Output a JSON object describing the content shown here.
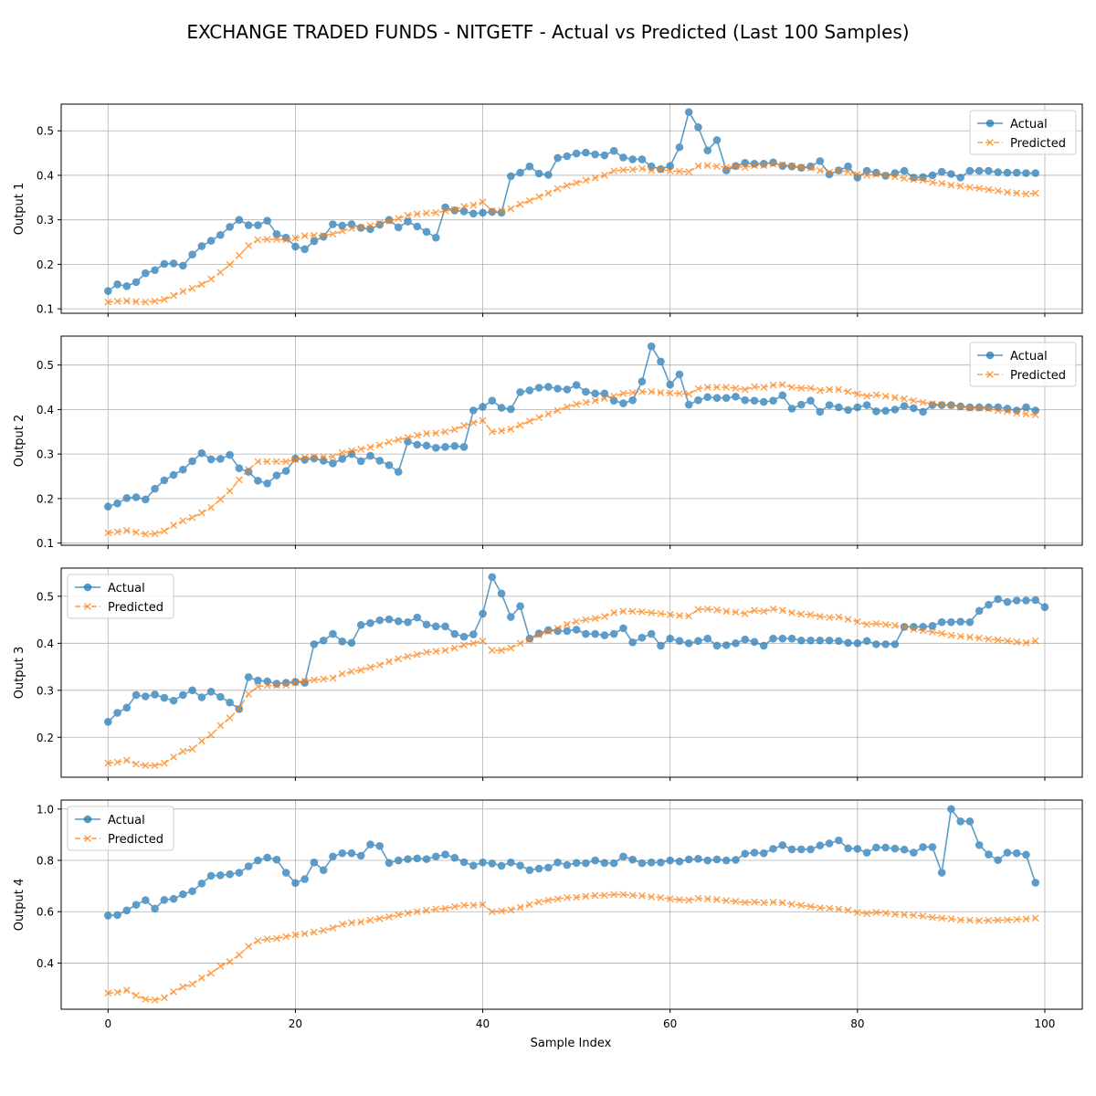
{
  "figure": {
    "title": "EXCHANGE TRADED FUNDS - NITGETF - Actual vs Predicted (Last 100 Samples)",
    "xlabel": "Sample Index"
  },
  "colors": {
    "actual": "#1f77b4",
    "predicted": "#ff7f0e",
    "grid": "#b0b0b0"
  },
  "chart_data": [
    {
      "type": "line",
      "ylabel": "Output 1",
      "xlim": [
        -5,
        104
      ],
      "ylim": [
        0.09,
        0.56
      ],
      "xticks": [
        0,
        20,
        40,
        60,
        80,
        100
      ],
      "yticks": [
        0.1,
        0.2,
        0.3,
        0.4,
        0.5
      ],
      "grid": true,
      "legend_position": "upper right",
      "series": [
        {
          "name": "Actual",
          "marker": "circle",
          "linestyle": "solid",
          "values": [
            0.14,
            0.155,
            0.151,
            0.16,
            0.18,
            0.187,
            0.201,
            0.202,
            0.197,
            0.222,
            0.241,
            0.253,
            0.266,
            0.284,
            0.3,
            0.288,
            0.288,
            0.298,
            0.268,
            0.26,
            0.24,
            0.234,
            0.252,
            0.262,
            0.29,
            0.287,
            0.29,
            0.282,
            0.279,
            0.289,
            0.3,
            0.283,
            0.296,
            0.285,
            0.273,
            0.26,
            0.328,
            0.321,
            0.319,
            0.314,
            0.316,
            0.318,
            0.316,
            0.398,
            0.406,
            0.42,
            0.404,
            0.401,
            0.439,
            0.443,
            0.449,
            0.451,
            0.447,
            0.445,
            0.455,
            0.44,
            0.436,
            0.436,
            0.42,
            0.414,
            0.421,
            0.463,
            0.542,
            0.508,
            0.456,
            0.479,
            0.411,
            0.421,
            0.428,
            0.426,
            0.426,
            0.429,
            0.421,
            0.42,
            0.417,
            0.42,
            0.432,
            0.402,
            0.411,
            0.42,
            0.395,
            0.41,
            0.406,
            0.399,
            0.405,
            0.41,
            0.395,
            0.396,
            0.4,
            0.408,
            0.403,
            0.395,
            0.41,
            0.41,
            0.41,
            0.407,
            0.406,
            0.406,
            0.405,
            0.405
          ]
        },
        {
          "name": "Predicted",
          "marker": "x",
          "linestyle": "dashed",
          "values": [
            0.115,
            0.117,
            0.118,
            0.116,
            0.115,
            0.117,
            0.121,
            0.13,
            0.139,
            0.146,
            0.155,
            0.167,
            0.182,
            0.199,
            0.22,
            0.242,
            0.255,
            0.256,
            0.256,
            0.255,
            0.259,
            0.264,
            0.265,
            0.265,
            0.268,
            0.275,
            0.281,
            0.283,
            0.287,
            0.292,
            0.297,
            0.303,
            0.31,
            0.313,
            0.315,
            0.316,
            0.32,
            0.323,
            0.33,
            0.333,
            0.34,
            0.32,
            0.32,
            0.325,
            0.335,
            0.343,
            0.352,
            0.36,
            0.37,
            0.377,
            0.383,
            0.389,
            0.394,
            0.4,
            0.41,
            0.412,
            0.413,
            0.415,
            0.411,
            0.413,
            0.41,
            0.409,
            0.408,
            0.421,
            0.422,
            0.42,
            0.418,
            0.42,
            0.418,
            0.422,
            0.422,
            0.425,
            0.424,
            0.421,
            0.418,
            0.416,
            0.411,
            0.407,
            0.411,
            0.408,
            0.402,
            0.4,
            0.402,
            0.4,
            0.397,
            0.393,
            0.391,
            0.389,
            0.384,
            0.382,
            0.378,
            0.376,
            0.373,
            0.371,
            0.368,
            0.365,
            0.362,
            0.36,
            0.358,
            0.36
          ]
        }
      ]
    },
    {
      "type": "line",
      "ylabel": "Output 2",
      "xlim": [
        -5,
        104
      ],
      "ylim": [
        0.095,
        0.565
      ],
      "xticks": [
        0,
        20,
        40,
        60,
        80,
        100
      ],
      "yticks": [
        0.1,
        0.2,
        0.3,
        0.4,
        0.5
      ],
      "grid": true,
      "legend_position": "upper right",
      "series": [
        {
          "name": "Actual",
          "marker": "circle",
          "linestyle": "solid",
          "values": [
            0.182,
            0.189,
            0.201,
            0.203,
            0.198,
            0.222,
            0.241,
            0.253,
            0.265,
            0.284,
            0.302,
            0.288,
            0.289,
            0.298,
            0.268,
            0.26,
            0.24,
            0.234,
            0.252,
            0.262,
            0.29,
            0.287,
            0.29,
            0.285,
            0.279,
            0.289,
            0.3,
            0.284,
            0.296,
            0.285,
            0.275,
            0.26,
            0.328,
            0.321,
            0.319,
            0.314,
            0.316,
            0.318,
            0.316,
            0.398,
            0.406,
            0.42,
            0.404,
            0.401,
            0.439,
            0.443,
            0.449,
            0.451,
            0.447,
            0.445,
            0.455,
            0.44,
            0.436,
            0.436,
            0.42,
            0.414,
            0.421,
            0.463,
            0.542,
            0.508,
            0.456,
            0.479,
            0.411,
            0.421,
            0.428,
            0.426,
            0.426,
            0.429,
            0.421,
            0.42,
            0.417,
            0.42,
            0.432,
            0.402,
            0.411,
            0.42,
            0.395,
            0.41,
            0.405,
            0.399,
            0.405,
            0.41,
            0.396,
            0.397,
            0.4,
            0.408,
            0.403,
            0.395,
            0.41,
            0.41,
            0.41,
            0.407,
            0.405,
            0.405,
            0.405,
            0.405,
            0.402,
            0.398,
            0.405,
            0.398
          ]
        },
        {
          "name": "Predicted",
          "marker": "x",
          "linestyle": "dashed",
          "values": [
            0.123,
            0.125,
            0.128,
            0.124,
            0.12,
            0.121,
            0.127,
            0.14,
            0.15,
            0.157,
            0.168,
            0.18,
            0.198,
            0.217,
            0.242,
            0.265,
            0.283,
            0.283,
            0.283,
            0.283,
            0.287,
            0.292,
            0.294,
            0.294,
            0.294,
            0.303,
            0.307,
            0.311,
            0.315,
            0.32,
            0.327,
            0.332,
            0.337,
            0.342,
            0.346,
            0.347,
            0.35,
            0.355,
            0.364,
            0.37,
            0.375,
            0.35,
            0.352,
            0.356,
            0.365,
            0.374,
            0.382,
            0.39,
            0.398,
            0.406,
            0.412,
            0.416,
            0.42,
            0.425,
            0.43,
            0.436,
            0.438,
            0.44,
            0.44,
            0.438,
            0.437,
            0.436,
            0.435,
            0.447,
            0.45,
            0.45,
            0.45,
            0.448,
            0.445,
            0.451,
            0.45,
            0.455,
            0.456,
            0.45,
            0.448,
            0.448,
            0.443,
            0.445,
            0.445,
            0.44,
            0.435,
            0.43,
            0.433,
            0.43,
            0.427,
            0.424,
            0.42,
            0.416,
            0.413,
            0.411,
            0.409,
            0.405,
            0.403,
            0.403,
            0.402,
            0.398,
            0.396,
            0.392,
            0.39,
            0.388
          ]
        }
      ]
    },
    {
      "type": "line",
      "ylabel": "Output 3",
      "xlim": [
        -5,
        104
      ],
      "ylim": [
        0.115,
        0.56
      ],
      "xticks": [
        0,
        20,
        40,
        60,
        80,
        100
      ],
      "yticks": [
        0.2,
        0.3,
        0.4,
        0.5
      ],
      "grid": true,
      "legend_position": "upper left",
      "series": [
        {
          "name": "Actual",
          "marker": "circle",
          "linestyle": "solid",
          "values": [
            0.233,
            0.252,
            0.263,
            0.29,
            0.287,
            0.291,
            0.284,
            0.278,
            0.29,
            0.3,
            0.285,
            0.297,
            0.286,
            0.274,
            0.26,
            0.328,
            0.321,
            0.319,
            0.314,
            0.316,
            0.318,
            0.316,
            0.398,
            0.406,
            0.42,
            0.404,
            0.401,
            0.439,
            0.443,
            0.449,
            0.451,
            0.447,
            0.445,
            0.455,
            0.44,
            0.436,
            0.436,
            0.42,
            0.414,
            0.419,
            0.463,
            0.541,
            0.506,
            0.456,
            0.479,
            0.41,
            0.421,
            0.428,
            0.426,
            0.426,
            0.429,
            0.42,
            0.42,
            0.417,
            0.42,
            0.432,
            0.402,
            0.412,
            0.42,
            0.395,
            0.41,
            0.405,
            0.4,
            0.405,
            0.41,
            0.395,
            0.396,
            0.4,
            0.408,
            0.403,
            0.395,
            0.41,
            0.41,
            0.41,
            0.406,
            0.406,
            0.406,
            0.406,
            0.405,
            0.401,
            0.4,
            0.405,
            0.398,
            0.398,
            0.398,
            0.435,
            0.435,
            0.435,
            0.437,
            0.445,
            0.445,
            0.446,
            0.445,
            0.469,
            0.482,
            0.494,
            0.488,
            0.491,
            0.491,
            0.492,
            0.477
          ]
        },
        {
          "name": "Predicted",
          "marker": "x",
          "linestyle": "dashed",
          "values": [
            0.145,
            0.147,
            0.151,
            0.143,
            0.14,
            0.14,
            0.145,
            0.158,
            0.17,
            0.175,
            0.192,
            0.205,
            0.225,
            0.241,
            0.262,
            0.292,
            0.308,
            0.31,
            0.31,
            0.311,
            0.317,
            0.32,
            0.322,
            0.324,
            0.326,
            0.335,
            0.34,
            0.343,
            0.349,
            0.354,
            0.361,
            0.367,
            0.372,
            0.376,
            0.381,
            0.383,
            0.385,
            0.39,
            0.396,
            0.4,
            0.405,
            0.385,
            0.385,
            0.39,
            0.4,
            0.408,
            0.418,
            0.425,
            0.432,
            0.44,
            0.446,
            0.45,
            0.453,
            0.457,
            0.465,
            0.468,
            0.468,
            0.467,
            0.465,
            0.463,
            0.461,
            0.459,
            0.458,
            0.472,
            0.473,
            0.471,
            0.468,
            0.466,
            0.463,
            0.47,
            0.468,
            0.473,
            0.47,
            0.465,
            0.462,
            0.461,
            0.457,
            0.455,
            0.456,
            0.451,
            0.446,
            0.44,
            0.442,
            0.44,
            0.438,
            0.434,
            0.43,
            0.427,
            0.424,
            0.421,
            0.417,
            0.415,
            0.413,
            0.411,
            0.409,
            0.407,
            0.405,
            0.403,
            0.401,
            0.405
          ]
        }
      ]
    },
    {
      "type": "line",
      "ylabel": "Output 4",
      "xlim": [
        -5,
        104
      ],
      "ylim": [
        0.22,
        1.035
      ],
      "xticks": [
        0,
        20,
        40,
        60,
        80,
        100
      ],
      "yticks": [
        0.4,
        0.6,
        0.8,
        1.0
      ],
      "grid": true,
      "legend_position": "upper left",
      "series": [
        {
          "name": "Actual",
          "marker": "circle",
          "linestyle": "solid",
          "values": [
            0.585,
            0.587,
            0.605,
            0.627,
            0.645,
            0.612,
            0.646,
            0.65,
            0.668,
            0.68,
            0.71,
            0.74,
            0.742,
            0.746,
            0.752,
            0.777,
            0.8,
            0.811,
            0.803,
            0.752,
            0.712,
            0.727,
            0.792,
            0.762,
            0.815,
            0.828,
            0.828,
            0.818,
            0.862,
            0.856,
            0.79,
            0.8,
            0.805,
            0.808,
            0.805,
            0.815,
            0.823,
            0.81,
            0.793,
            0.78,
            0.792,
            0.788,
            0.779,
            0.792,
            0.78,
            0.762,
            0.768,
            0.772,
            0.792,
            0.782,
            0.79,
            0.789,
            0.8,
            0.79,
            0.789,
            0.815,
            0.803,
            0.789,
            0.792,
            0.792,
            0.8,
            0.796,
            0.804,
            0.806,
            0.8,
            0.804,
            0.8,
            0.802,
            0.826,
            0.83,
            0.828,
            0.845,
            0.859,
            0.843,
            0.843,
            0.843,
            0.858,
            0.866,
            0.878,
            0.847,
            0.845,
            0.83,
            0.85,
            0.85,
            0.846,
            0.842,
            0.83,
            0.852,
            0.852,
            0.752,
            1.0,
            0.952,
            0.952,
            0.86,
            0.823,
            0.801,
            0.83,
            0.828,
            0.822,
            0.713
          ]
        },
        {
          "name": "Predicted",
          "marker": "x",
          "linestyle": "dashed",
          "values": [
            0.283,
            0.286,
            0.294,
            0.274,
            0.259,
            0.256,
            0.265,
            0.288,
            0.307,
            0.318,
            0.342,
            0.36,
            0.388,
            0.405,
            0.432,
            0.465,
            0.487,
            0.493,
            0.496,
            0.503,
            0.51,
            0.514,
            0.52,
            0.527,
            0.537,
            0.551,
            0.557,
            0.56,
            0.567,
            0.573,
            0.58,
            0.588,
            0.594,
            0.6,
            0.605,
            0.61,
            0.613,
            0.62,
            0.625,
            0.625,
            0.628,
            0.6,
            0.603,
            0.607,
            0.617,
            0.628,
            0.638,
            0.645,
            0.65,
            0.655,
            0.656,
            0.66,
            0.663,
            0.664,
            0.667,
            0.667,
            0.664,
            0.662,
            0.658,
            0.655,
            0.65,
            0.647,
            0.645,
            0.652,
            0.65,
            0.647,
            0.643,
            0.64,
            0.636,
            0.638,
            0.635,
            0.637,
            0.635,
            0.629,
            0.625,
            0.62,
            0.615,
            0.613,
            0.61,
            0.606,
            0.597,
            0.593,
            0.597,
            0.594,
            0.59,
            0.588,
            0.586,
            0.583,
            0.578,
            0.575,
            0.572,
            0.568,
            0.567,
            0.565,
            0.566,
            0.567,
            0.568,
            0.57,
            0.572,
            0.575
          ]
        }
      ]
    }
  ]
}
